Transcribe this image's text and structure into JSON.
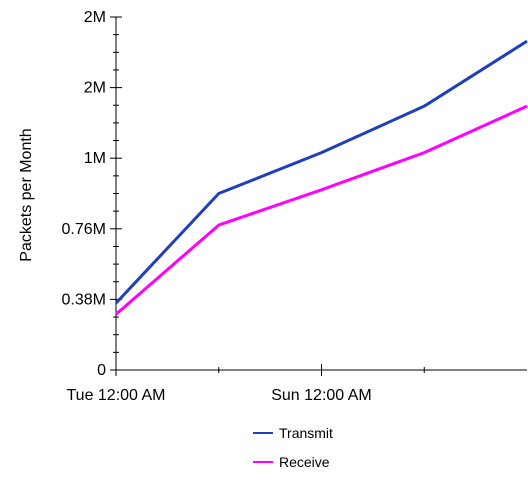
{
  "chart_data": {
    "type": "line",
    "title": "",
    "xlabel": "",
    "ylabel": "Packets per Month",
    "x_ticks": [
      "Tue 12:00 AM",
      "Sun 12:00 AM"
    ],
    "y_ticks": [
      "0",
      "0.38M",
      "0.76M",
      "1M",
      "2M",
      "2M"
    ],
    "y_tick_values": [
      0,
      0.38,
      0.76,
      1.14,
      1.52,
      1.9
    ],
    "ylim": [
      0,
      1.9
    ],
    "y_unit": "millions of packets",
    "x": [
      0,
      1,
      2,
      3,
      4
    ],
    "series": [
      {
        "name": "Transmit",
        "color": "#1f3fbf",
        "values": [
          0.36,
          0.95,
          1.17,
          1.42,
          1.77
        ]
      },
      {
        "name": "Receive",
        "color": "#ff00ff",
        "values": [
          0.3,
          0.78,
          0.97,
          1.17,
          1.42
        ]
      }
    ],
    "grid": false,
    "legend_position": "bottom-center"
  }
}
